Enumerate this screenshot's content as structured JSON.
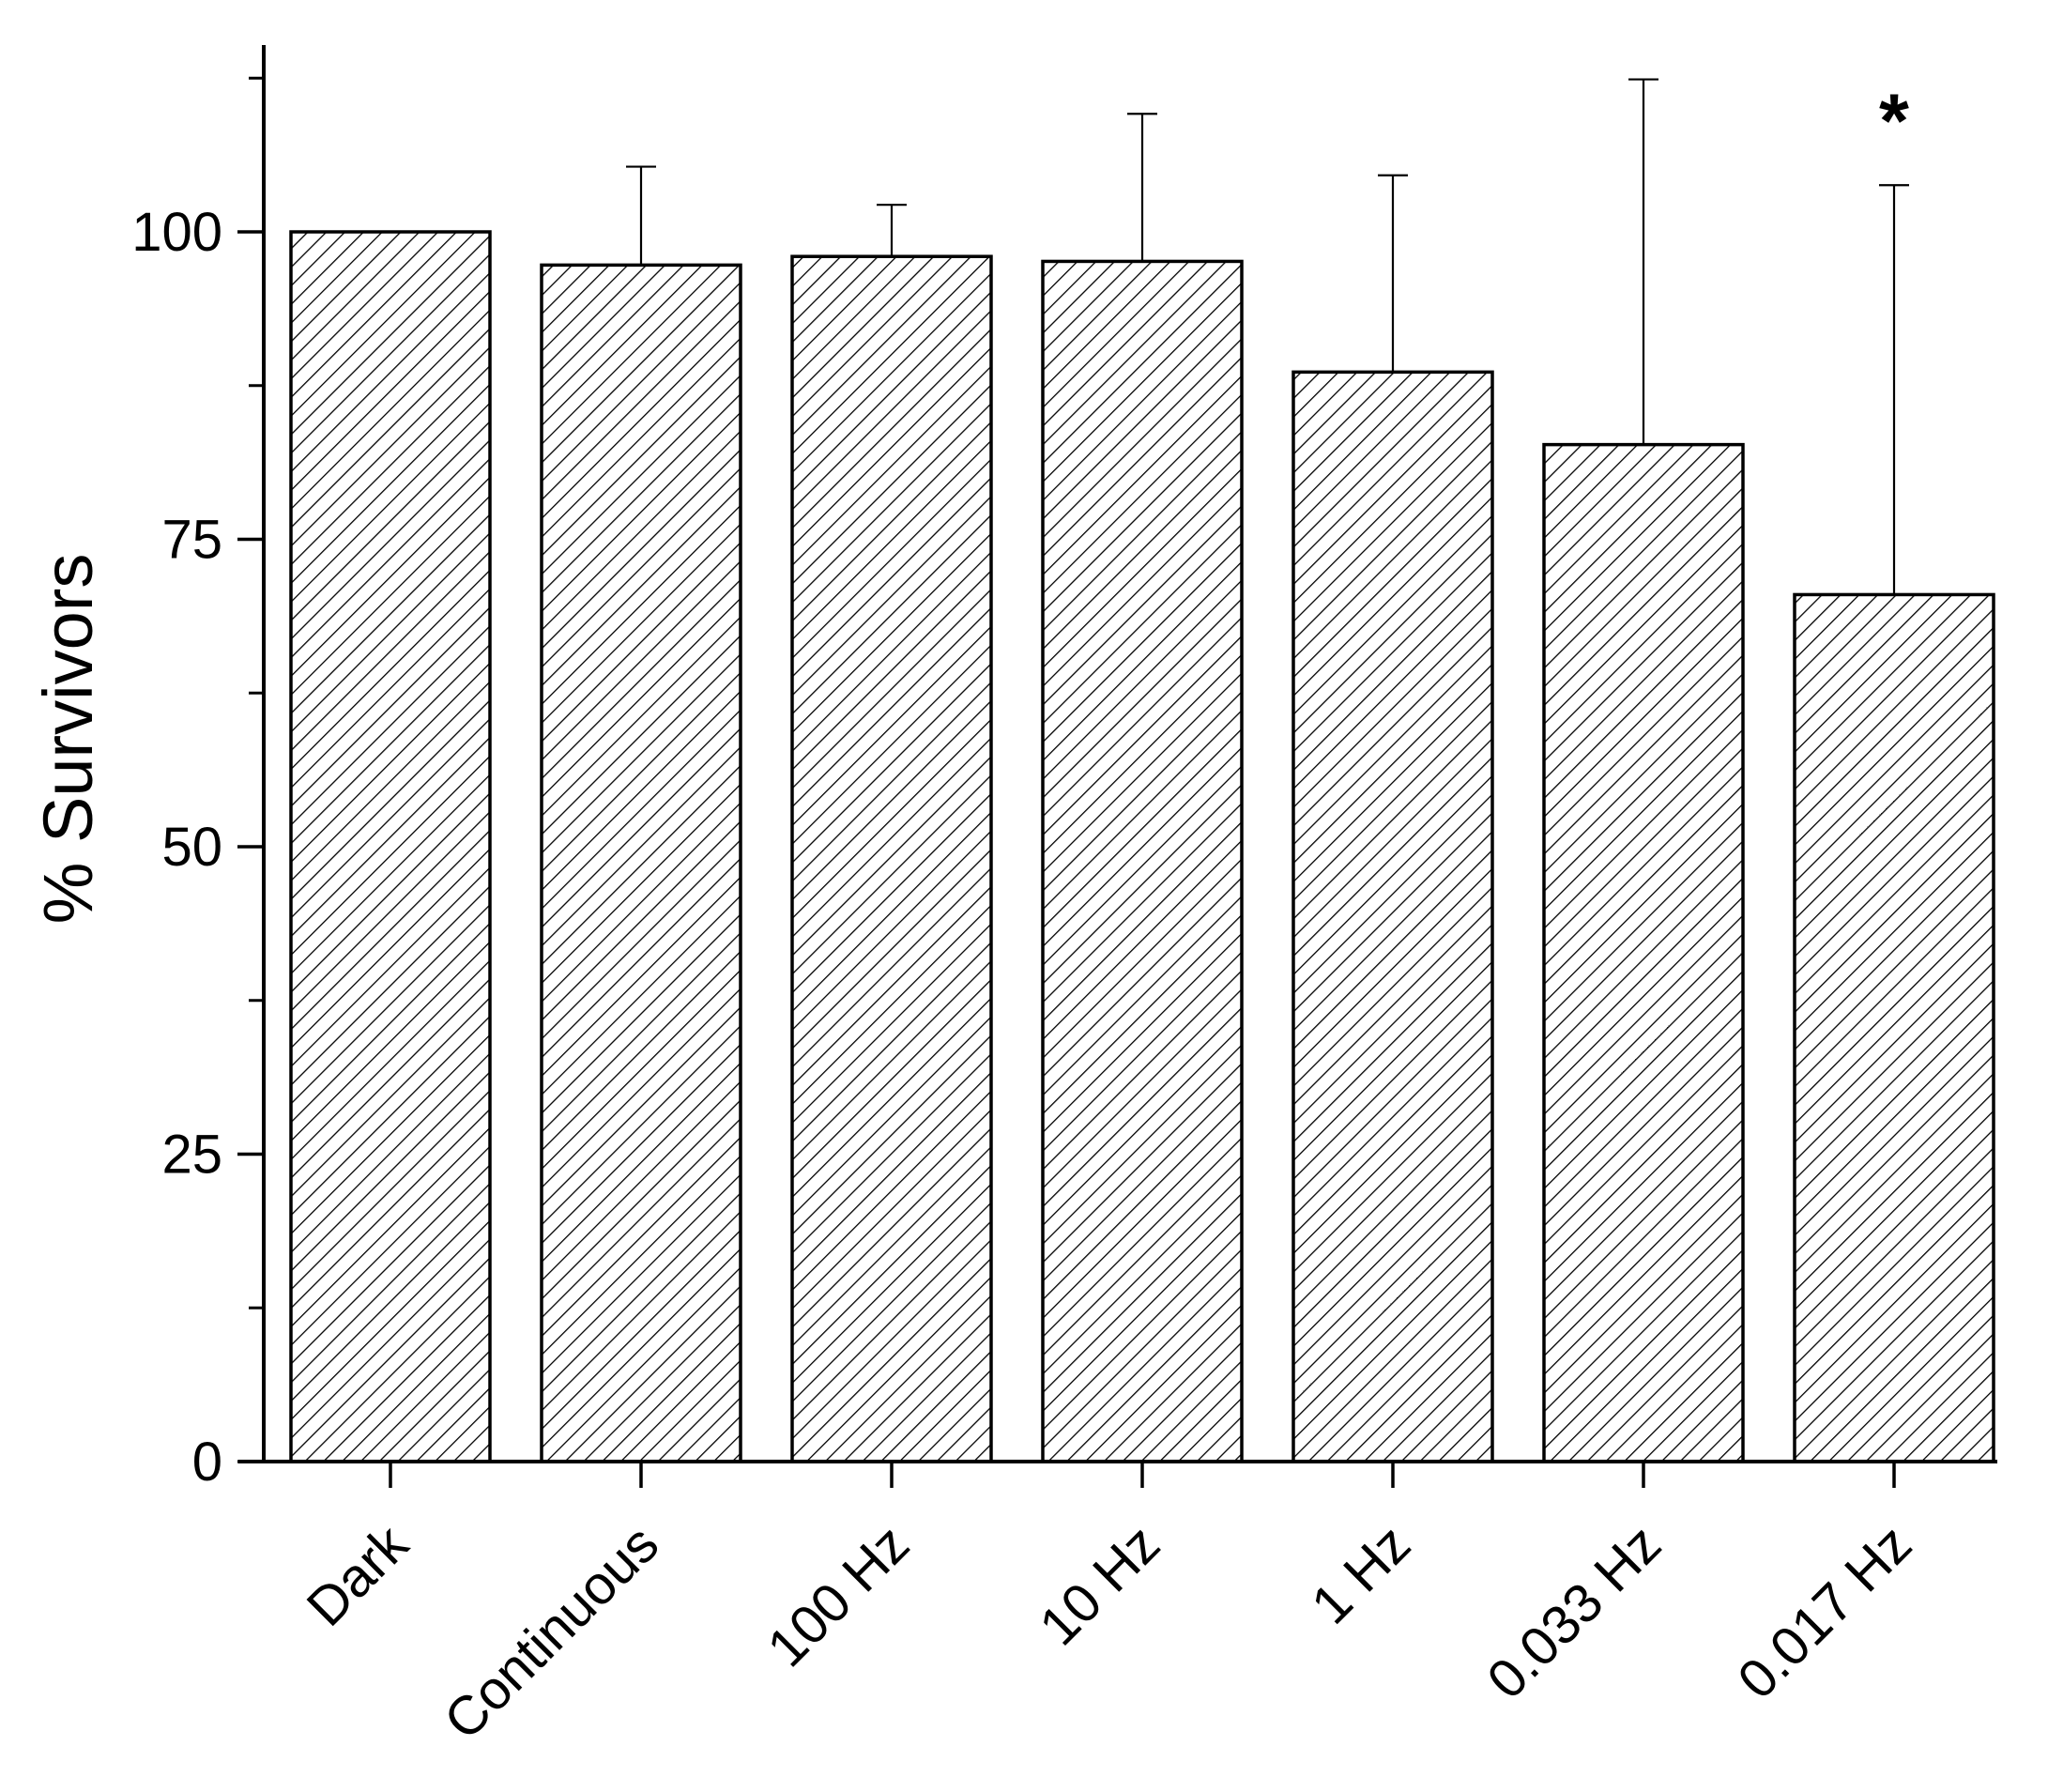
{
  "chart_data": {
    "type": "bar",
    "title": "",
    "xlabel": "",
    "ylabel": "% Survivors",
    "ylim": [
      0,
      115
    ],
    "yticks": [
      0,
      25,
      50,
      75,
      100
    ],
    "yminor_ticks": [
      12.5,
      37.5,
      62.5,
      87.5,
      112.5
    ],
    "categories": [
      "Dark",
      "Continuous",
      "100 Hz",
      "10 Hz",
      "1 Hz",
      "0.033 Hz",
      "0.017 Hz"
    ],
    "values": [
      100,
      97.3,
      98.0,
      97.6,
      88.6,
      82.7,
      70.5
    ],
    "error_upper": [
      null,
      105.3,
      102.2,
      109.6,
      104.6,
      112.4,
      103.8
    ],
    "annotations": [
      {
        "category": "0.017 Hz",
        "text": "*"
      }
    ],
    "bar_fill": "hatched",
    "bar_color": "#000000",
    "legend": "none",
    "grid": false
  }
}
